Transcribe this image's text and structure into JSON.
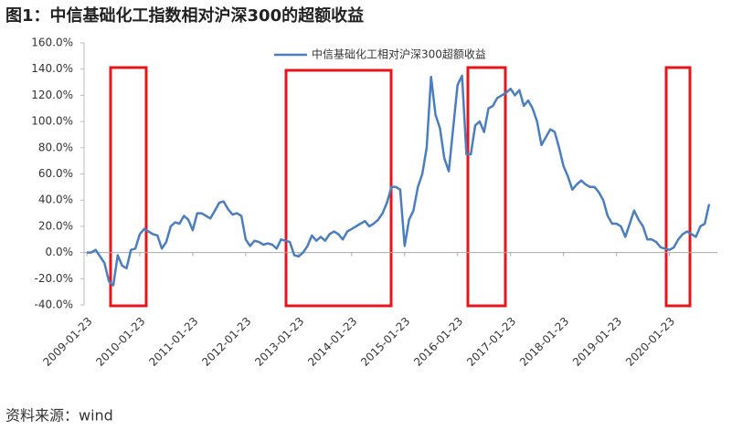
{
  "chart_data": {
    "type": "line",
    "title": "图1：中信基础化工指数相对沪深300的超额收益",
    "source": "资料来源：wind",
    "categories": [
      "2009-01-23",
      null,
      null,
      null,
      null,
      null,
      null,
      null,
      null,
      null,
      null,
      null,
      "2010-01-23",
      null,
      null,
      null,
      null,
      null,
      null,
      null,
      null,
      null,
      null,
      null,
      "2011-01-23",
      null,
      null,
      null,
      null,
      null,
      null,
      null,
      null,
      null,
      null,
      null,
      "2012-01-23",
      null,
      null,
      null,
      null,
      null,
      null,
      null,
      null,
      null,
      null,
      null,
      "2013-01-23",
      null,
      null,
      null,
      null,
      null,
      null,
      null,
      null,
      null,
      null,
      null,
      "2014-01-23",
      null,
      null,
      null,
      null,
      null,
      null,
      null,
      null,
      null,
      null,
      null,
      "2015-01-23",
      null,
      null,
      null,
      null,
      null,
      null,
      null,
      null,
      null,
      null,
      null,
      "2016-01-23",
      null,
      null,
      null,
      null,
      null,
      null,
      null,
      null,
      null,
      null,
      null,
      "2017-01-23",
      null,
      null,
      null,
      null,
      null,
      null,
      null,
      null,
      null,
      null,
      null,
      "2018-01-23",
      null,
      null,
      null,
      null,
      null,
      null,
      null,
      null,
      null,
      null,
      null,
      "2019-01-23",
      null,
      null,
      null,
      null,
      null,
      null,
      null,
      null,
      null,
      null,
      null,
      "2020-01-23",
      null,
      null,
      null,
      null,
      null,
      null,
      null,
      null,
      null
    ],
    "series": [
      {
        "name": "中信基础化工相对沪深300超额收益",
        "color": "#4a7ebf",
        "values": [
          0,
          0,
          2,
          -3,
          -8,
          -22,
          -25,
          -2,
          -10,
          -12,
          2,
          3,
          14,
          18,
          16,
          14,
          13,
          3,
          8,
          20,
          23,
          22,
          28,
          25,
          17,
          30,
          30,
          28,
          26,
          32,
          38,
          39,
          33,
          29,
          30,
          28,
          10,
          5,
          9,
          8,
          6,
          7,
          6,
          3,
          10,
          9,
          8,
          -2,
          -3,
          0,
          5,
          13,
          9,
          12,
          9,
          14,
          16,
          14,
          10,
          16,
          18,
          20,
          22,
          24,
          20,
          22,
          25,
          30,
          38,
          50,
          50,
          48,
          5,
          25,
          32,
          50,
          60,
          80,
          134,
          105,
          95,
          72,
          62,
          95,
          128,
          135,
          75,
          75,
          97,
          100,
          92,
          110,
          112,
          118,
          120,
          122,
          125,
          120,
          124,
          112,
          116,
          110,
          100,
          82,
          88,
          94,
          92,
          80,
          66,
          58,
          48,
          52,
          55,
          52,
          50,
          50,
          46,
          40,
          28,
          22,
          22,
          20,
          12,
          22,
          32,
          25,
          20,
          10,
          10,
          8,
          4,
          3,
          2,
          4,
          10,
          14,
          16,
          14,
          12,
          20,
          22,
          37
        ]
      }
    ],
    "ylim": [
      -40,
      160
    ],
    "yticks": [
      {
        "value": -40,
        "label": "-40.0%"
      },
      {
        "value": -20,
        "label": "-20.0%"
      },
      {
        "value": 0,
        "label": "0.0%"
      },
      {
        "value": 20,
        "label": "20.0%"
      },
      {
        "value": 40,
        "label": "40.0%"
      },
      {
        "value": 60,
        "label": "60.0%"
      },
      {
        "value": 80,
        "label": "80.0%"
      },
      {
        "value": 100,
        "label": "100.0%"
      },
      {
        "value": 120,
        "label": "120.0%"
      },
      {
        "value": 140,
        "label": "140.0%"
      },
      {
        "value": 160,
        "label": "160.0%"
      }
    ],
    "legend": "top"
  }
}
